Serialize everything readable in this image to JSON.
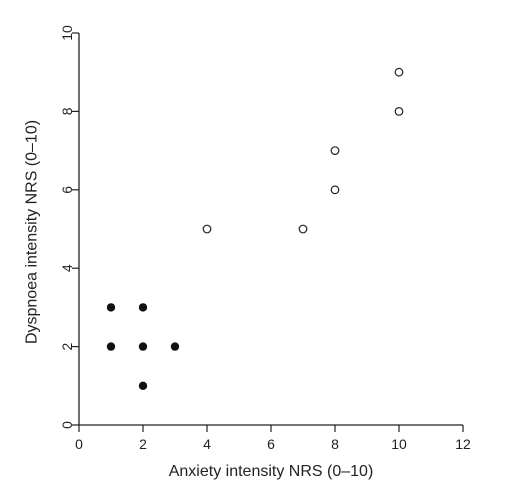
{
  "chart_data": {
    "type": "scatter",
    "title": "",
    "xlabel": "Anxiety intensity NRS (0–10)",
    "ylabel": "Dyspnoea intensity NRS (0–10)",
    "xlim": [
      0,
      12
    ],
    "ylim": [
      0,
      10
    ],
    "x_ticks": [
      0,
      2,
      4,
      6,
      8,
      10,
      12
    ],
    "y_ticks": [
      0,
      2,
      4,
      6,
      8,
      10
    ],
    "grid": false,
    "colors": {
      "axis": "#222222",
      "filled_marker": "#111111",
      "open_marker_stroke": "#222222",
      "open_marker_fill": "#ffffff"
    },
    "series": [
      {
        "marker": "filled-circle",
        "points": [
          {
            "x": 1,
            "y": 3
          },
          {
            "x": 2,
            "y": 3
          },
          {
            "x": 1,
            "y": 2
          },
          {
            "x": 2,
            "y": 2
          },
          {
            "x": 3,
            "y": 2
          },
          {
            "x": 2,
            "y": 1
          }
        ]
      },
      {
        "marker": "open-circle",
        "points": [
          {
            "x": 4,
            "y": 5
          },
          {
            "x": 7,
            "y": 5
          },
          {
            "x": 8,
            "y": 6
          },
          {
            "x": 8,
            "y": 7
          },
          {
            "x": 10,
            "y": 8
          },
          {
            "x": 10,
            "y": 9
          }
        ]
      }
    ]
  }
}
